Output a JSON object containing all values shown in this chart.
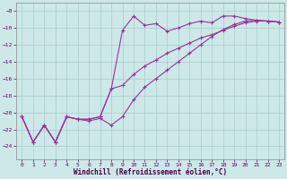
{
  "xlabel": "Windchill (Refroidissement éolien,°C)",
  "background_color": "#cce8e8",
  "grid_color": "#aacccc",
  "line_color": "#993399",
  "xlim": [
    -0.5,
    23.5
  ],
  "ylim": [
    -25.5,
    -7.0
  ],
  "yticks": [
    -8,
    -10,
    -12,
    -14,
    -16,
    -18,
    -20,
    -22,
    -24
  ],
  "xticks": [
    0,
    1,
    2,
    3,
    4,
    5,
    6,
    7,
    8,
    9,
    10,
    11,
    12,
    13,
    14,
    15,
    16,
    17,
    18,
    19,
    20,
    21,
    22,
    23
  ],
  "line1_x": [
    0,
    1,
    2,
    3,
    4,
    5,
    6,
    7,
    8,
    9,
    10,
    11,
    12,
    13,
    14,
    15,
    16,
    17,
    18,
    19,
    20,
    21,
    22,
    23
  ],
  "line1_y": [
    -20.5,
    -23.5,
    -21.5,
    -23.5,
    -20.5,
    -20.8,
    -20.8,
    -20.5,
    -17.2,
    -10.3,
    -8.6,
    -9.7,
    -9.5,
    -10.4,
    -10.0,
    -9.5,
    -9.2,
    -9.4,
    -8.6,
    -8.6,
    -8.9,
    -9.1,
    -9.2,
    -9.3
  ],
  "line2_x": [
    0,
    1,
    2,
    3,
    4,
    5,
    6,
    7,
    8,
    9,
    10,
    11,
    12,
    13,
    14,
    15,
    16,
    17,
    18,
    19,
    20,
    21,
    22,
    23
  ],
  "line2_y": [
    -20.5,
    -23.5,
    -21.5,
    -23.5,
    -20.5,
    -20.8,
    -20.8,
    -20.5,
    -17.2,
    -16.8,
    -15.5,
    -14.5,
    -13.8,
    -13.0,
    -12.4,
    -11.8,
    -11.2,
    -10.8,
    -10.3,
    -9.8,
    -9.4,
    -9.2,
    -9.2,
    -9.3
  ],
  "line3_x": [
    0,
    1,
    2,
    3,
    4,
    5,
    6,
    7,
    8,
    9,
    10,
    11,
    12,
    13,
    14,
    15,
    16,
    17,
    18,
    19,
    20,
    21,
    22,
    23
  ],
  "line3_y": [
    -20.5,
    -23.5,
    -21.5,
    -23.5,
    -20.5,
    -20.8,
    -21.0,
    -20.7,
    -21.5,
    -20.5,
    -18.5,
    -17.0,
    -16.0,
    -15.0,
    -14.0,
    -13.0,
    -12.0,
    -11.0,
    -10.2,
    -9.6,
    -9.2,
    -9.1,
    -9.2,
    -9.3
  ]
}
